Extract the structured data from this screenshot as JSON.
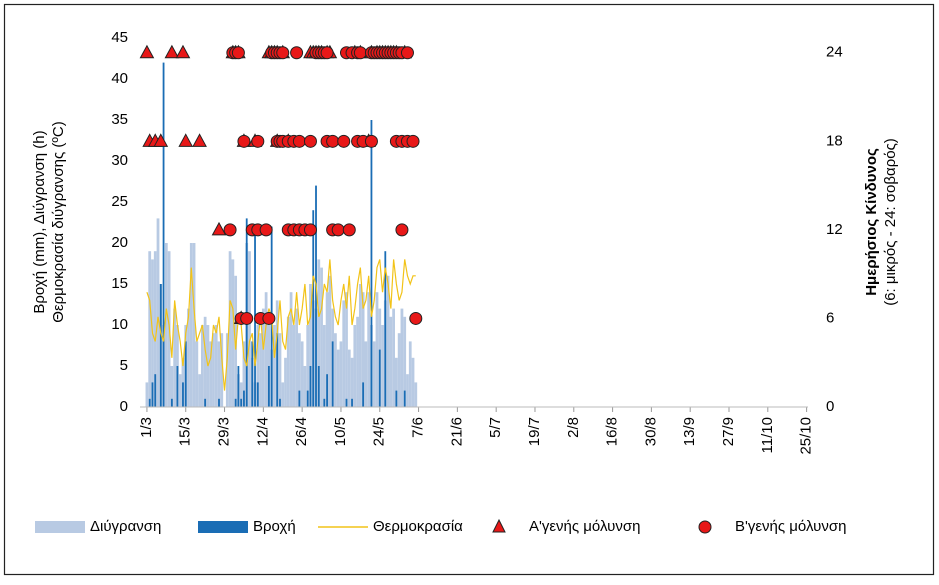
{
  "chart_data": {
    "type": "combo",
    "y_label": [
      "Βροχή (mm), Διύγρανση (h)",
      "Θερμοκρασία διύγρανσης (ºC)"
    ],
    "y2_label": [
      "Ημερήσιος Κίνδυνος",
      "(6: μικρός - 24: σοβαρός)"
    ],
    "xlim": [
      -2.5,
      238.5
    ],
    "xticks": [
      {
        "value": 0,
        "label": "1/3"
      },
      {
        "value": 14,
        "label": "15/3"
      },
      {
        "value": 28,
        "label": "29/3"
      },
      {
        "value": 42,
        "label": "12/4"
      },
      {
        "value": 56,
        "label": "26/4"
      },
      {
        "value": 70,
        "label": "10/5"
      },
      {
        "value": 84,
        "label": "24/5"
      },
      {
        "value": 98,
        "label": "7/6"
      },
      {
        "value": 112,
        "label": "21/6"
      },
      {
        "value": 126,
        "label": "5/7"
      },
      {
        "value": 140,
        "label": "19/7"
      },
      {
        "value": 154,
        "label": "2/8"
      },
      {
        "value": 168,
        "label": "16/8"
      },
      {
        "value": 182,
        "label": "30/8"
      },
      {
        "value": 196,
        "label": "13/9"
      },
      {
        "value": 210,
        "label": "27/9"
      },
      {
        "value": 224,
        "label": "11/10"
      },
      {
        "value": 238,
        "label": "25/10"
      }
    ],
    "ylim": [
      0,
      45
    ],
    "yticks": [
      0,
      5,
      10,
      15,
      20,
      25,
      30,
      35,
      40,
      45
    ],
    "y2lim": [
      0,
      25
    ],
    "y2ticks": [
      0,
      6,
      12,
      18,
      24
    ],
    "grid": false,
    "x": [
      0,
      1,
      2,
      3,
      4,
      5,
      6,
      7,
      8,
      9,
      10,
      11,
      12,
      13,
      14,
      15,
      16,
      17,
      18,
      19,
      20,
      21,
      22,
      23,
      24,
      25,
      26,
      27,
      28,
      29,
      30,
      31,
      32,
      33,
      34,
      35,
      36,
      37,
      38,
      39,
      40,
      41,
      42,
      43,
      44,
      45,
      46,
      47,
      48,
      49,
      50,
      51,
      52,
      53,
      54,
      55,
      56,
      57,
      58,
      59,
      60,
      61,
      62,
      63,
      64,
      65,
      66,
      67,
      68,
      69,
      70,
      71,
      72,
      73,
      74,
      75,
      76,
      77,
      78,
      79,
      80,
      81,
      82,
      83,
      84,
      85,
      86,
      87,
      88,
      89,
      90,
      91,
      92,
      93,
      94,
      95,
      96,
      97
    ],
    "series": [
      {
        "name": "Διύγρανση",
        "type": "bar",
        "color": "#b8cae3",
        "values": [
          3,
          19,
          18,
          19,
          23,
          15,
          10,
          20,
          19,
          5,
          12,
          10,
          4,
          6,
          10,
          12,
          20,
          20,
          8,
          4,
          10,
          11,
          10,
          8,
          9,
          10,
          8,
          9,
          0,
          9,
          19,
          18,
          16,
          4,
          3,
          8,
          20,
          19,
          6,
          3,
          10,
          9,
          12,
          14,
          10,
          7,
          10,
          13,
          9,
          3,
          6,
          11,
          14,
          10,
          12,
          9,
          8,
          5,
          10,
          15,
          13,
          12,
          18,
          17,
          10,
          14,
          16,
          12,
          9,
          7,
          8,
          13,
          14,
          7,
          6,
          10,
          11,
          15,
          14,
          8,
          14,
          10,
          8,
          14,
          12,
          10,
          13,
          16,
          11,
          12,
          6,
          9,
          12,
          11,
          4,
          8,
          6,
          3
        ]
      },
      {
        "name": "Βροχή",
        "type": "bar",
        "color": "#1a6db5",
        "values": [
          0,
          1,
          3,
          4,
          0,
          15,
          42,
          0,
          0,
          1,
          0,
          5,
          0,
          3,
          8,
          0,
          0,
          0,
          0,
          0,
          0,
          1,
          0,
          0,
          0,
          0,
          1,
          0,
          0,
          0,
          0,
          0,
          1,
          5,
          1,
          2,
          23,
          0,
          8,
          21,
          3,
          0,
          0,
          0,
          5,
          22,
          0,
          9,
          1,
          0,
          0,
          0,
          0,
          0,
          0,
          2,
          0,
          0,
          2,
          5,
          24,
          27,
          5,
          0,
          1,
          4,
          0,
          8,
          0,
          0,
          0,
          0,
          1,
          0,
          1,
          0,
          0,
          0,
          3,
          0,
          0,
          35,
          0,
          0,
          7,
          0,
          19,
          0,
          0,
          0,
          2,
          0,
          0,
          2,
          0,
          0,
          0,
          0
        ]
      },
      {
        "name": "Θερμοκρασία",
        "type": "line",
        "color": "#f2c318",
        "values": [
          14,
          13,
          9,
          8,
          11,
          9,
          8,
          12,
          10,
          6,
          13,
          10,
          8,
          5,
          9,
          11,
          17,
          12,
          8,
          9,
          10,
          7,
          5,
          6,
          10,
          9,
          11,
          6,
          2,
          6,
          13,
          12,
          7,
          11,
          10,
          6,
          5,
          8,
          9,
          5,
          8,
          11,
          7,
          10,
          12,
          11,
          6,
          9,
          13,
          8,
          7,
          11,
          12,
          10,
          14,
          10,
          12,
          15,
          10,
          11,
          16,
          15,
          11,
          12,
          15,
          14,
          18,
          13,
          11,
          10,
          13,
          15,
          12,
          16,
          10,
          12,
          15,
          17,
          12,
          13,
          16,
          11,
          13,
          17,
          18,
          14,
          17,
          15,
          12,
          18,
          15,
          13,
          14,
          18,
          16,
          15,
          16,
          16
        ]
      },
      {
        "name": "Α'γενής μόλυνση",
        "type": "scatter",
        "marker": "triangle",
        "axis": "y2",
        "color": "#e81818",
        "x": [
          0,
          9,
          13,
          31,
          32,
          33,
          44,
          45,
          46,
          47,
          49,
          59,
          60,
          61,
          62,
          63,
          65,
          66,
          75,
          77,
          81,
          83,
          84,
          85,
          86,
          87,
          88,
          89,
          90,
          93,
          1,
          3,
          5,
          14,
          19,
          35,
          39,
          47,
          51,
          80,
          26,
          34
        ],
        "values": [
          24,
          24,
          24,
          24,
          24,
          24,
          24,
          24,
          24,
          24,
          24,
          24,
          24,
          24,
          24,
          24,
          24,
          24,
          24,
          24,
          24,
          24,
          24,
          24,
          24,
          24,
          24,
          24,
          24,
          24,
          18,
          18,
          18,
          18,
          18,
          18,
          18,
          18,
          18,
          18,
          12,
          6
        ]
      },
      {
        "name": "Β'γενής μόλυνση",
        "type": "scatter",
        "marker": "circle",
        "axis": "y2",
        "color": "#e81818",
        "x": [
          31,
          32,
          33,
          45,
          46,
          47,
          48,
          49,
          54,
          61,
          62,
          63,
          64,
          65,
          72,
          74,
          76,
          77,
          81,
          82,
          83,
          84,
          85,
          86,
          87,
          88,
          89,
          90,
          91,
          92,
          94,
          35,
          40,
          47,
          48,
          49,
          51,
          53,
          55,
          59,
          65,
          67,
          71,
          76,
          78,
          81,
          90,
          92,
          94,
          96,
          30,
          38,
          40,
          43,
          51,
          53,
          55,
          57,
          59,
          67,
          69,
          73,
          92,
          34,
          36,
          41,
          44,
          97
        ],
        "values": [
          24,
          24,
          24,
          24,
          24,
          24,
          24,
          24,
          24,
          24,
          24,
          24,
          24,
          24,
          24,
          24,
          24,
          24,
          24,
          24,
          24,
          24,
          24,
          24,
          24,
          24,
          24,
          24,
          24,
          24,
          24,
          18,
          18,
          18,
          18,
          18,
          18,
          18,
          18,
          18,
          18,
          18,
          18,
          18,
          18,
          18,
          18,
          18,
          18,
          18,
          12,
          12,
          12,
          12,
          12,
          12,
          12,
          12,
          12,
          12,
          12,
          12,
          12,
          6,
          6,
          6,
          6,
          6
        ]
      }
    ]
  }
}
